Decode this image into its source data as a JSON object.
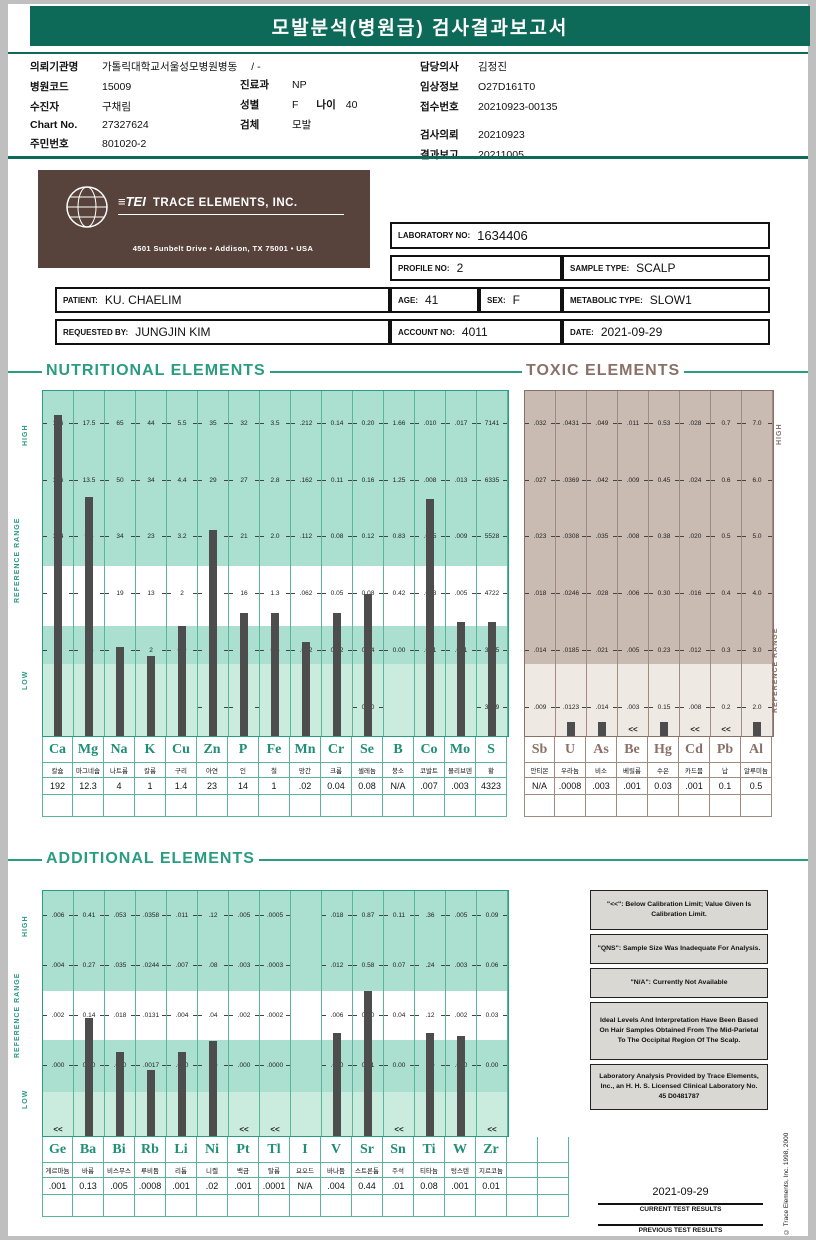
{
  "colors": {
    "page_bg": "#bfbfbf",
    "header_bar": "#0e6a58",
    "teal_accent": "#2a9c82",
    "teal_grid": "#5bb59b",
    "teal_band": "#abdfd0",
    "teal_band_light": "#c9ecdf",
    "teal_symbol": "#1f8f77",
    "toxic_accent": "#8a7168",
    "toxic_grid": "#a18a7f",
    "toxic_band": "#c9bbb2",
    "toxic_band_light": "#efe9e4",
    "bar": "#4d4d4d",
    "tei_brown": "#57433b",
    "note_bg": "#d9d8d3"
  },
  "header": {
    "title": "모발분석(병원급) 검사결과보고서"
  },
  "info": {
    "left": [
      {
        "label": "의뢰기관명",
        "value": "가톨릭대학교서울성모병원병동",
        "extra": "/ -"
      },
      {
        "label": "병원코드",
        "value": "15009"
      },
      {
        "label": "수진자",
        "value": "구채림"
      },
      {
        "label": "Chart No.",
        "value": "27327624"
      },
      {
        "label": "주민번호",
        "value": "801020-2"
      }
    ],
    "mid": [
      {
        "label": "진료과",
        "value": "NP"
      },
      {
        "label": "성별",
        "value": "F",
        "label2": "나이",
        "value2": "40"
      },
      {
        "label": "검체",
        "value": "모발"
      }
    ],
    "right": [
      {
        "label": "담당의사",
        "value": "김정진"
      },
      {
        "label": "임상정보",
        "value": "O27D161T0"
      },
      {
        "label": "접수번호",
        "value": "20210923-00135"
      },
      {
        "label": "검사의뢰",
        "value": "20210923"
      },
      {
        "label": "결과보고",
        "value": "20211005"
      }
    ]
  },
  "tei": {
    "logo": "≡TEI",
    "brand": "TRACE ELEMENTS, INC.",
    "address": "4501 Sunbelt Drive  •  Addison, TX 75001  •  USA"
  },
  "summary": {
    "laboratory": {
      "label": "LABORATORY NO:",
      "value": "1634406"
    },
    "profile": {
      "label": "PROFILE NO:",
      "value": "2"
    },
    "sample": {
      "label": "SAMPLE TYPE:",
      "value": "SCALP"
    },
    "patient": {
      "label": "PATIENT:",
      "value": "KU. CHAELIM"
    },
    "age": {
      "label": "AGE:",
      "value": "41"
    },
    "sex": {
      "label": "SEX:",
      "value": "F"
    },
    "metabolic": {
      "label": "METABOLIC TYPE:",
      "value": "SLOW1"
    },
    "requested": {
      "label": "REQUESTED BY:",
      "value": "JUNGJIN KIM"
    },
    "account": {
      "label": "ACCOUNT NO:",
      "value": "4011"
    },
    "date": {
      "label": "DATE:",
      "value": "2021-09-29"
    }
  },
  "chart_data": [
    {
      "id": "nutritional",
      "type": "bar",
      "title": "NUTRITIONAL ELEMENTS",
      "theme": "teal",
      "side_labels": {
        "high": "HIGH",
        "reference": "REFERENCE RANGE",
        "low": "LOW"
      },
      "elements": [
        {
          "symbol": "Ca",
          "korean": "칼슘",
          "result": "192",
          "ticks": [
            "186",
            "146",
            "104",
            "63",
            "22",
            null
          ]
        },
        {
          "symbol": "Mg",
          "korean": "마그네슘",
          "result": "12.3",
          "ticks": [
            "17.5",
            "13.5",
            "9.4",
            "5",
            "1.5",
            null
          ]
        },
        {
          "symbol": "Na",
          "korean": "나트륨",
          "result": "4",
          "ticks": [
            "65",
            "50",
            "34",
            "19",
            "3",
            null
          ]
        },
        {
          "symbol": "K",
          "korean": "칼륨",
          "result": "1",
          "ticks": [
            "44",
            "34",
            "23",
            "13",
            "2",
            null
          ]
        },
        {
          "symbol": "Cu",
          "korean": "구리",
          "result": "1.4",
          "ticks": [
            "5.5",
            "4.4",
            "3.2",
            "2",
            "0.9",
            null
          ]
        },
        {
          "symbol": "Zn",
          "korean": "아연",
          "result": "23",
          "ticks": [
            "35",
            "29",
            "22",
            "16",
            "9",
            "3"
          ]
        },
        {
          "symbol": "P",
          "korean": "인",
          "result": "14",
          "ticks": [
            "32",
            "27",
            "21",
            "16",
            "10",
            "5"
          ]
        },
        {
          "symbol": "Fe",
          "korean": "철",
          "result": "1",
          "ticks": [
            "3.5",
            "2.8",
            "2.0",
            "1.3",
            "0.5",
            null
          ]
        },
        {
          "symbol": "Mn",
          "korean": "망간",
          "result": ".02",
          "ticks": [
            ".212",
            ".162",
            ".112",
            ".062",
            ".012",
            null
          ]
        },
        {
          "symbol": "Cr",
          "korean": "크롬",
          "result": "0.04",
          "ticks": [
            "0.14",
            "0.11",
            "0.08",
            "0.05",
            "0.02",
            null
          ]
        },
        {
          "symbol": "Se",
          "korean": "셀레늄",
          "result": "0.08",
          "ticks": [
            "0.20",
            "0.16",
            "0.12",
            "0.08",
            "0.04",
            "0.00"
          ]
        },
        {
          "symbol": "B",
          "korean": "붕소",
          "result": "N/A",
          "ticks": [
            "1.66",
            "1.25",
            "0.83",
            "0.42",
            "0.00",
            null
          ]
        },
        {
          "symbol": "Co",
          "korean": "코발트",
          "result": ".007",
          "ticks": [
            ".010",
            ".008",
            ".005",
            ".003",
            ".001",
            null
          ]
        },
        {
          "symbol": "Mo",
          "korean": "몰리브덴",
          "result": ".003",
          "ticks": [
            ".017",
            ".013",
            ".009",
            ".005",
            ".001",
            null
          ]
        },
        {
          "symbol": "S",
          "korean": "황",
          "result": "4323",
          "ticks": [
            "7141",
            "6335",
            "5528",
            "4722",
            "3915",
            "3109"
          ]
        }
      ]
    },
    {
      "id": "toxic",
      "type": "bar",
      "title": "TOXIC ELEMENTS",
      "theme": "toxic",
      "side_labels": {
        "high": "HIGH",
        "reference": "REFERENCE RANGE"
      },
      "elements": [
        {
          "symbol": "Sb",
          "korean": "안티몬",
          "result": "N/A",
          "ticks": [
            ".032",
            ".027",
            ".023",
            ".018",
            ".014",
            ".009"
          ]
        },
        {
          "symbol": "U",
          "korean": "우라늄",
          "result": ".0008",
          "ticks": [
            ".0431",
            ".0369",
            ".0308",
            ".0246",
            ".0185",
            ".0123"
          ]
        },
        {
          "symbol": "As",
          "korean": "비소",
          "result": ".003",
          "ticks": [
            ".049",
            ".042",
            ".035",
            ".028",
            ".021",
            ".014"
          ]
        },
        {
          "symbol": "Be",
          "korean": "베릴륨",
          "result": ".001",
          "below_limit": true,
          "ticks": [
            ".011",
            ".009",
            ".008",
            ".006",
            ".005",
            ".003"
          ]
        },
        {
          "symbol": "Hg",
          "korean": "수은",
          "result": "0.03",
          "ticks": [
            "0.53",
            "0.45",
            "0.38",
            "0.30",
            "0.23",
            "0.15"
          ]
        },
        {
          "symbol": "Cd",
          "korean": "카드뮴",
          "result": ".001",
          "below_limit": true,
          "ticks": [
            ".028",
            ".024",
            ".020",
            ".016",
            ".012",
            ".008"
          ]
        },
        {
          "symbol": "Pb",
          "korean": "납",
          "result": "0.1",
          "below_limit": true,
          "ticks": [
            "0.7",
            "0.6",
            "0.5",
            "0.4",
            "0.3",
            "0.2"
          ]
        },
        {
          "symbol": "Al",
          "korean": "알루미늄",
          "result": "0.5",
          "ticks": [
            "7.0",
            "6.0",
            "5.0",
            "4.0",
            "3.0",
            "2.0"
          ]
        }
      ]
    },
    {
      "id": "additional",
      "type": "bar",
      "title": "ADDITIONAL ELEMENTS",
      "theme": "teal",
      "extra_columns": 2,
      "side_labels": {
        "high": "HIGH",
        "reference": "REFERENCE RANGE",
        "low": "LOW"
      },
      "elements": [
        {
          "symbol": "Ge",
          "korean": "게르마늄",
          "result": ".001",
          "below_limit": true,
          "ticks": [
            ".006",
            ".004",
            ".002",
            ".000"
          ]
        },
        {
          "symbol": "Ba",
          "korean": "바륨",
          "result": "0.13",
          "ticks": [
            "0.41",
            "0.27",
            "0.14",
            "0.00"
          ]
        },
        {
          "symbol": "Bi",
          "korean": "비스무스",
          "result": ".005",
          "ticks": [
            ".053",
            ".035",
            ".018",
            ".000"
          ]
        },
        {
          "symbol": "Rb",
          "korean": "루비듐",
          "result": ".0008",
          "ticks": [
            ".0358",
            ".0244",
            ".0131",
            ".0017"
          ]
        },
        {
          "symbol": "Li",
          "korean": "리튬",
          "result": ".001",
          "ticks": [
            ".011",
            ".007",
            ".004",
            ".000"
          ]
        },
        {
          "symbol": "Ni",
          "korean": "니켈",
          "result": ".02",
          "ticks": [
            ".12",
            ".08",
            ".04",
            ".00"
          ]
        },
        {
          "symbol": "Pt",
          "korean": "백금",
          "result": ".001",
          "below_limit": true,
          "ticks": [
            ".005",
            ".003",
            ".002",
            ".000"
          ]
        },
        {
          "symbol": "Tl",
          "korean": "탈륨",
          "result": ".0001",
          "below_limit": true,
          "ticks": [
            ".0005",
            ".0003",
            ".0002",
            ".0000"
          ]
        },
        {
          "symbol": "I",
          "korean": "요오드",
          "result": "N/A",
          "ticks": [
            null,
            null,
            null,
            null
          ]
        },
        {
          "symbol": "V",
          "korean": "바나듐",
          "result": ".004",
          "ticks": [
            ".018",
            ".012",
            ".006",
            ".000"
          ]
        },
        {
          "symbol": "Sr",
          "korean": "스트론튬",
          "result": "0.44",
          "ticks": [
            "0.87",
            "0.58",
            "0.30",
            "0.01"
          ]
        },
        {
          "symbol": "Sn",
          "korean": "주석",
          "result": ".01",
          "below_limit": true,
          "ticks": [
            "0.11",
            "0.07",
            "0.04",
            "0.00"
          ]
        },
        {
          "symbol": "Ti",
          "korean": "티타늄",
          "result": "0.08",
          "ticks": [
            ".36",
            ".24",
            ".12",
            ".00"
          ]
        },
        {
          "symbol": "W",
          "korean": "텅스텐",
          "result": ".001",
          "ticks": [
            ".005",
            ".003",
            ".002",
            ".000"
          ]
        },
        {
          "symbol": "Zr",
          "korean": "지르코늄",
          "result": "0.01",
          "below_limit": true,
          "ticks": [
            "0.09",
            "0.06",
            "0.03",
            "0.00"
          ]
        }
      ]
    }
  ],
  "notes": [
    "\"<<\": Below Calibration Limit; Value Given Is Calibration Limit.",
    "\"QNS\": Sample Size Was Inadequate For Analysis.",
    "\"N/A\": Currently Not Available",
    "Ideal Levels And Interpretation Have Been Based On Hair Samples Obtained From The Mid-Parietal To The Occipital Region Of The Scalp.",
    "Laboratory Analysis Provided by Trace Elements, Inc., an H. H. S. Licensed Clinical Laboratory No. 45 D0481787"
  ],
  "footer": {
    "date": "2021-09-29",
    "current_label": "CURRENT TEST RESULTS",
    "previous_label": "PREVIOUS TEST RESULTS",
    "copyright": "© Trace Elements, Inc. 1998, 2000"
  }
}
